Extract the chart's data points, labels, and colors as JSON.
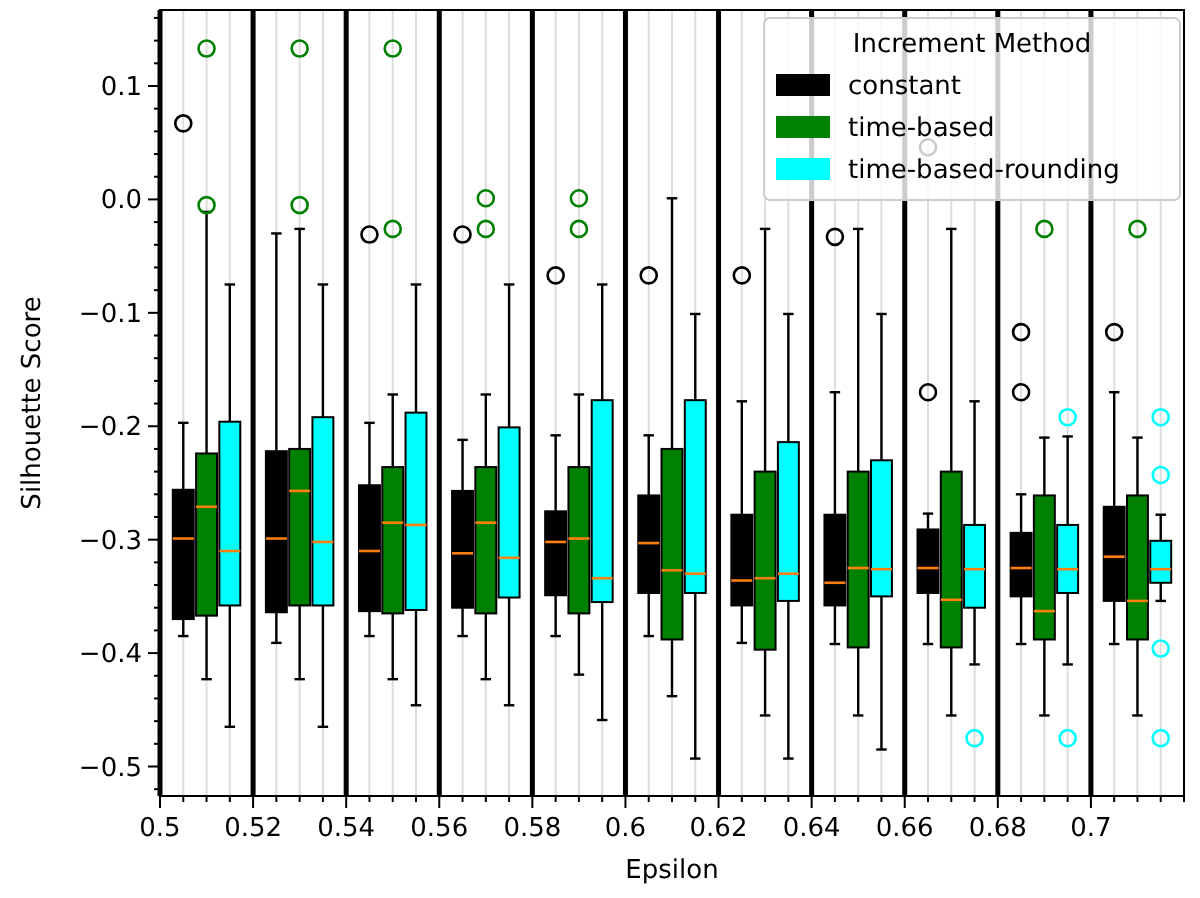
{
  "chart_data": {
    "type": "box",
    "xlabel": "Epsilon",
    "ylabel": "Silhouette Score",
    "legend_title": "Increment Method",
    "legend": "top right",
    "grid": "x",
    "xlim": [
      0.5,
      0.72
    ],
    "ylim": [
      -0.526,
      0.167
    ],
    "xticks": [
      0.5,
      {
        "value": 0.505,
        "label": null
      },
      {
        "value": 0.51,
        "label": null
      },
      {
        "value": 0.515,
        "label": null
      },
      0.52,
      {
        "value": 0.525,
        "label": null
      },
      {
        "value": 0.53,
        "label": null
      },
      {
        "value": 0.535,
        "label": null
      },
      0.54,
      {
        "value": 0.545,
        "label": null
      },
      {
        "value": 0.55,
        "label": null
      },
      {
        "value": 0.555,
        "label": null
      },
      0.56,
      {
        "value": 0.565,
        "label": null
      },
      {
        "value": 0.57,
        "label": null
      },
      {
        "value": 0.575,
        "label": null
      },
      0.58,
      {
        "value": 0.585,
        "label": null
      },
      {
        "value": 0.59,
        "label": null
      },
      {
        "value": 0.595,
        "label": null
      },
      0.6,
      {
        "value": 0.605,
        "label": null
      },
      {
        "value": 0.61,
        "label": null
      },
      {
        "value": 0.615,
        "label": null
      },
      0.62,
      {
        "value": 0.625,
        "label": null
      },
      {
        "value": 0.63,
        "label": null
      },
      {
        "value": 0.635,
        "label": null
      },
      0.64,
      {
        "value": 0.645,
        "label": null
      },
      {
        "value": 0.65,
        "label": null
      },
      {
        "value": 0.655,
        "label": null
      },
      0.66,
      {
        "value": 0.665,
        "label": null
      },
      {
        "value": 0.67,
        "label": null
      },
      {
        "value": 0.675,
        "label": null
      },
      0.68,
      {
        "value": 0.685,
        "label": null
      },
      {
        "value": 0.69,
        "label": null
      },
      {
        "value": 0.695,
        "label": null
      },
      0.7,
      {
        "value": 0.705,
        "label": null
      },
      {
        "value": 0.71,
        "label": null
      },
      {
        "value": 0.715,
        "label": null
      },
      {
        "value": 0.72,
        "label": null
      }
    ],
    "yticks": [
      {
        "value": -0.52,
        "label": null
      },
      {
        "value": -0.5,
        "label": "−0.5"
      },
      {
        "value": -0.48,
        "label": null
      },
      {
        "value": -0.46,
        "label": null
      },
      {
        "value": -0.44,
        "label": null
      },
      {
        "value": -0.42,
        "label": null
      },
      {
        "value": -0.4,
        "label": "−0.4"
      },
      {
        "value": -0.38,
        "label": null
      },
      {
        "value": -0.36,
        "label": null
      },
      {
        "value": -0.34,
        "label": null
      },
      {
        "value": -0.32,
        "label": null
      },
      {
        "value": -0.3,
        "label": "−0.3"
      },
      {
        "value": -0.28,
        "label": null
      },
      {
        "value": -0.26,
        "label": null
      },
      {
        "value": -0.24,
        "label": null
      },
      {
        "value": -0.22,
        "label": null
      },
      {
        "value": -0.2,
        "label": "−0.2"
      },
      {
        "value": -0.18,
        "label": null
      },
      {
        "value": -0.16,
        "label": null
      },
      {
        "value": -0.14,
        "label": null
      },
      {
        "value": -0.12,
        "label": null
      },
      {
        "value": -0.1,
        "label": "−0.1"
      },
      {
        "value": -0.08,
        "label": null
      },
      {
        "value": -0.06,
        "label": null
      },
      {
        "value": -0.04,
        "label": null
      },
      {
        "value": -0.02,
        "label": null
      },
      {
        "value": 0,
        "label": "0.0"
      },
      {
        "value": 0.02,
        "label": null
      },
      {
        "value": 0.04,
        "label": null
      },
      {
        "value": 0.06,
        "label": null
      },
      {
        "value": 0.08,
        "label": null
      },
      0.1,
      {
        "value": 0.12,
        "label": null
      },
      {
        "value": 0.14,
        "label": null
      },
      {
        "value": 0.16,
        "label": null
      }
    ],
    "series": [
      {
        "name": "constant",
        "color": "#000000",
        "x": [
          0.505,
          0.525,
          0.545,
          0.565,
          0.585,
          0.605,
          0.625,
          0.645,
          0.665,
          0.685,
          0.705
        ],
        "boxes": [
          {
            "low": -0.385,
            "q1": -0.37,
            "median": -0.299,
            "q3": -0.256,
            "high": -0.197,
            "outliers": [
              0.067
            ]
          },
          {
            "low": -0.391,
            "q1": -0.364,
            "median": -0.299,
            "q3": -0.222,
            "high": -0.03
          },
          {
            "low": -0.385,
            "q1": -0.363,
            "median": -0.31,
            "q3": -0.252,
            "high": -0.197,
            "outliers": [
              -0.031
            ]
          },
          {
            "low": -0.385,
            "q1": -0.36,
            "median": -0.312,
            "q3": -0.257,
            "high": -0.212,
            "outliers": [
              -0.031
            ]
          },
          {
            "low": -0.385,
            "q1": -0.349,
            "median": -0.302,
            "q3": -0.275,
            "high": -0.208,
            "outliers": [
              -0.067
            ]
          },
          {
            "low": -0.385,
            "q1": -0.347,
            "median": -0.303,
            "q3": -0.261,
            "high": -0.208,
            "outliers": [
              -0.067
            ]
          },
          {
            "low": -0.391,
            "q1": -0.358,
            "median": -0.336,
            "q3": -0.278,
            "high": -0.178,
            "outliers": [
              -0.067
            ]
          },
          {
            "low": -0.392,
            "q1": -0.358,
            "median": -0.338,
            "q3": -0.278,
            "high": -0.17,
            "outliers": [
              -0.033
            ]
          },
          {
            "low": -0.392,
            "q1": -0.347,
            "median": -0.325,
            "q3": -0.291,
            "high": -0.277,
            "outliers": [
              -0.17,
              0.046
            ]
          },
          {
            "low": -0.392,
            "q1": -0.35,
            "median": -0.325,
            "q3": -0.294,
            "high": -0.26,
            "outliers": [
              -0.117,
              -0.17
            ]
          },
          {
            "low": -0.392,
            "q1": -0.354,
            "median": -0.315,
            "q3": -0.271,
            "high": -0.17,
            "outliers": [
              -0.117
            ]
          }
        ]
      },
      {
        "name": "time-based",
        "color": "#008000",
        "x": [
          0.51,
          0.53,
          0.55,
          0.57,
          0.59,
          0.61,
          0.63,
          0.65,
          0.67,
          0.69,
          0.71
        ],
        "boxes": [
          {
            "low": -0.423,
            "q1": -0.367,
            "median": -0.271,
            "q3": -0.224,
            "high": -0.011,
            "outliers": [
              0.133,
              -0.005
            ]
          },
          {
            "low": -0.423,
            "q1": -0.358,
            "median": -0.257,
            "q3": -0.22,
            "high": -0.026,
            "outliers": [
              0.133,
              -0.005
            ]
          },
          {
            "low": -0.423,
            "q1": -0.365,
            "median": -0.285,
            "q3": -0.236,
            "high": -0.172,
            "outliers": [
              0.133,
              -0.026
            ]
          },
          {
            "low": -0.423,
            "q1": -0.365,
            "median": -0.285,
            "q3": -0.236,
            "high": -0.172,
            "outliers": [
              0.001,
              -0.026
            ]
          },
          {
            "low": -0.419,
            "q1": -0.365,
            "median": -0.299,
            "q3": -0.236,
            "high": -0.172,
            "outliers": [
              0.001,
              -0.026
            ]
          },
          {
            "low": -0.438,
            "q1": -0.388,
            "median": -0.327,
            "q3": -0.22,
            "high": 0.001
          },
          {
            "low": -0.455,
            "q1": -0.397,
            "median": -0.334,
            "q3": -0.24,
            "high": -0.026
          },
          {
            "low": -0.455,
            "q1": -0.395,
            "median": -0.325,
            "q3": -0.24,
            "high": -0.026
          },
          {
            "low": -0.455,
            "q1": -0.395,
            "median": -0.353,
            "q3": -0.24,
            "high": -0.026
          },
          {
            "low": -0.455,
            "q1": -0.388,
            "median": -0.363,
            "q3": -0.261,
            "high": -0.21,
            "outliers": [
              -0.026
            ]
          },
          {
            "low": -0.455,
            "q1": -0.388,
            "median": -0.354,
            "q3": -0.261,
            "high": -0.21,
            "outliers": [
              -0.026
            ]
          }
        ]
      },
      {
        "name": "time-based-rounding",
        "color": "#00ffff",
        "x": [
          0.515,
          0.535,
          0.555,
          0.575,
          0.595,
          0.615,
          0.635,
          0.655,
          0.675,
          0.695,
          0.715
        ],
        "boxes": [
          {
            "low": -0.465,
            "q1": -0.358,
            "median": -0.31,
            "q3": -0.196,
            "high": -0.075
          },
          {
            "low": -0.465,
            "q1": -0.358,
            "median": -0.302,
            "q3": -0.192,
            "high": -0.075
          },
          {
            "low": -0.446,
            "q1": -0.362,
            "median": -0.287,
            "q3": -0.188,
            "high": -0.075
          },
          {
            "low": -0.446,
            "q1": -0.351,
            "median": -0.316,
            "q3": -0.201,
            "high": -0.075
          },
          {
            "low": -0.459,
            "q1": -0.355,
            "median": -0.334,
            "q3": -0.177,
            "high": -0.075
          },
          {
            "low": -0.493,
            "q1": -0.347,
            "median": -0.33,
            "q3": -0.177,
            "high": -0.101
          },
          {
            "low": -0.493,
            "q1": -0.354,
            "median": -0.33,
            "q3": -0.214,
            "high": -0.101
          },
          {
            "low": -0.485,
            "q1": -0.35,
            "median": -0.326,
            "q3": -0.23,
            "high": -0.101
          },
          {
            "low": -0.41,
            "q1": -0.36,
            "median": -0.326,
            "q3": -0.287,
            "high": -0.178,
            "outliers": [
              -0.475
            ]
          },
          {
            "low": -0.41,
            "q1": -0.347,
            "median": -0.326,
            "q3": -0.287,
            "high": -0.209,
            "outliers": [
              -0.192,
              -0.475
            ]
          },
          {
            "low": -0.354,
            "q1": -0.338,
            "median": -0.326,
            "q3": -0.301,
            "high": -0.278,
            "outliers": [
              -0.192,
              -0.243,
              -0.396,
              -0.475
            ]
          }
        ]
      }
    ]
  }
}
